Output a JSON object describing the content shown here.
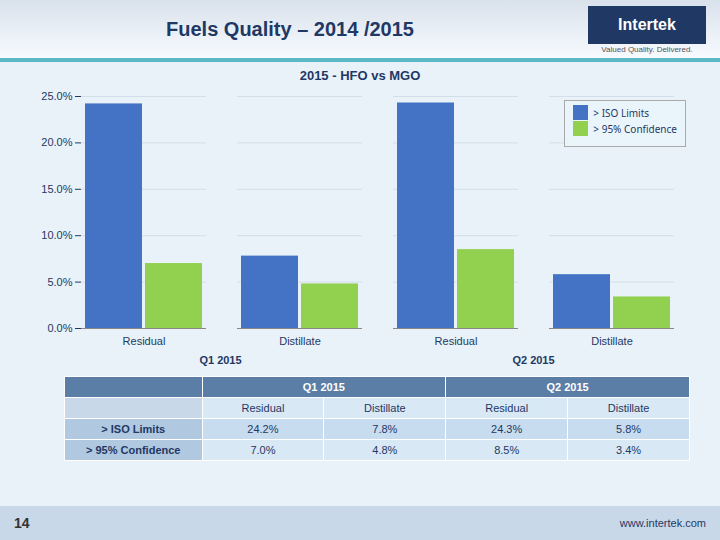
{
  "chart_data": {
    "type": "bar",
    "title": "Fuels Quality – 2014 /2015",
    "subtitle": "2015 - HFO vs MGO",
    "categories": [
      "Residual",
      "Distillate",
      "Residual",
      "Distillate"
    ],
    "group_labels": [
      "Q1 2015",
      "Q2 2015"
    ],
    "series": [
      {
        "name": "> ISO Limits",
        "color": "#4472C4",
        "values": [
          24.2,
          7.8,
          24.3,
          5.8
        ]
      },
      {
        "name": "> 95% Confidence",
        "color": "#92D050",
        "values": [
          7.0,
          4.8,
          8.5,
          3.4
        ]
      }
    ],
    "ylim": [
      0,
      25
    ],
    "yticks": [
      {
        "value": 0,
        "label": "0.0%"
      },
      {
        "value": 5,
        "label": "5.0%"
      },
      {
        "value": 10,
        "label": "10.0%"
      },
      {
        "value": 15,
        "label": "15.0%"
      },
      {
        "value": 20,
        "label": "20.0%"
      },
      {
        "value": 25,
        "label": "25.0%"
      }
    ],
    "grid": true,
    "legend": "upper right",
    "table": {
      "rows": [
        {
          "label": "> ISO Limits",
          "cells": [
            "24.2%",
            "7.8%",
            "24.3%",
            "5.8%"
          ]
        },
        {
          "label": "> 95% Confidence",
          "cells": [
            "7.0%",
            "4.8%",
            "8.5%",
            "3.4%"
          ]
        }
      ]
    },
    "header_logo": "Intertek",
    "header_tagline": "Valued Quality. Delivered.",
    "footer_left": "14",
    "footer_right": "www.intertek.com"
  }
}
